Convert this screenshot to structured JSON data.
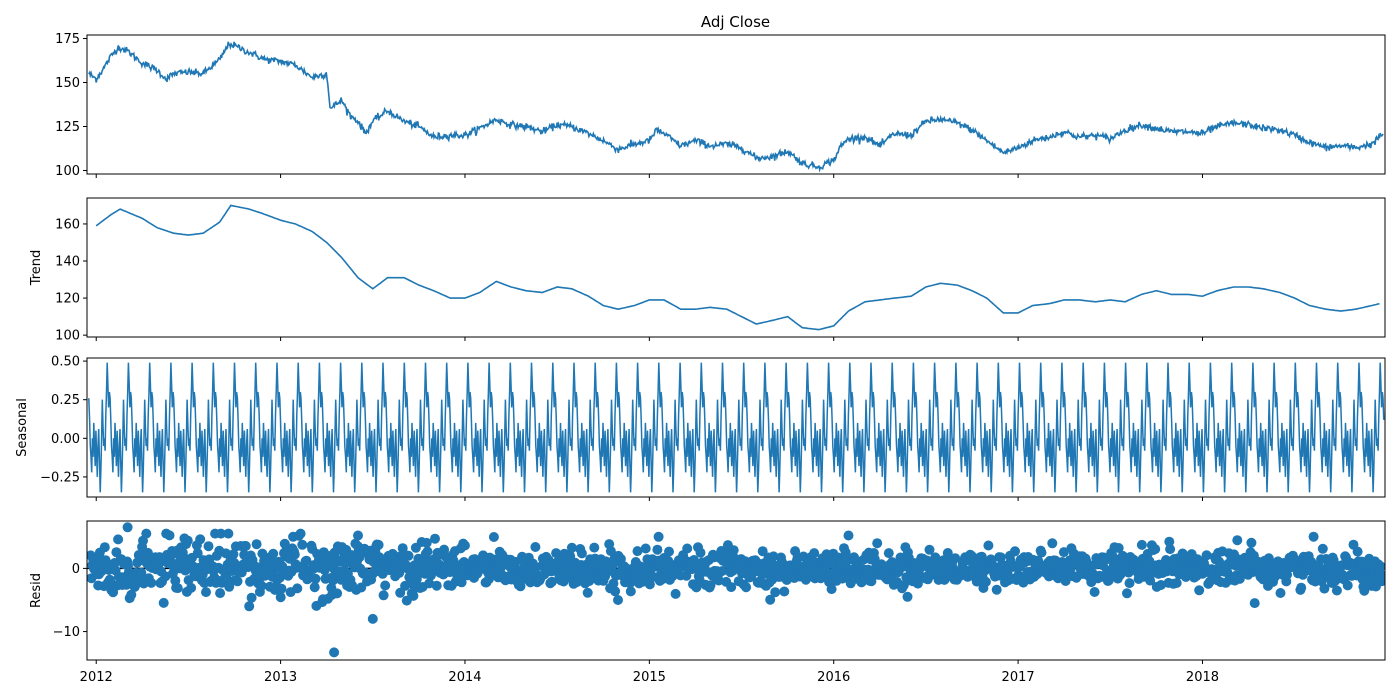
{
  "figure": {
    "title": "Adj Close",
    "line_color": "#1f77b4"
  },
  "chart_data": [
    {
      "type": "line",
      "title": "Adj Close",
      "ylabel": "",
      "xlim": [
        2011.95,
        2018.99
      ],
      "ylim": [
        98,
        177
      ],
      "yticks": [
        100,
        125,
        150,
        175
      ],
      "xticks": [
        2012,
        2013,
        2014,
        2015,
        2016,
        2017,
        2018
      ],
      "x_tick_labels": [
        "2012",
        "2013",
        "2014",
        "2015",
        "2016",
        "2017",
        "2018"
      ],
      "series": [
        {
          "x": [
            2011.96,
            2012.0,
            2012.04,
            2012.08,
            2012.12,
            2012.17,
            2012.25,
            2012.33,
            2012.38,
            2012.42,
            2012.5,
            2012.58,
            2012.67,
            2012.72,
            2012.75,
            2012.83,
            2012.92,
            2013.0,
            2013.08,
            2013.17,
            2013.25,
            2013.27,
            2013.33,
            2013.38,
            2013.42,
            2013.46,
            2013.5,
            2013.58,
            2013.67,
            2013.75,
            2013.83,
            2013.92,
            2014.0,
            2014.08,
            2014.17,
            2014.25,
            2014.33,
            2014.42,
            2014.5,
            2014.58,
            2014.67,
            2014.75,
            2014.83,
            2014.92,
            2015.0,
            2015.04,
            2015.08,
            2015.17,
            2015.25,
            2015.33,
            2015.42,
            2015.5,
            2015.58,
            2015.67,
            2015.75,
            2015.83,
            2015.92,
            2016.0,
            2016.04,
            2016.08,
            2016.17,
            2016.25,
            2016.33,
            2016.42,
            2016.5,
            2016.58,
            2016.67,
            2016.75,
            2016.83,
            2016.92,
            2017.0,
            2017.08,
            2017.17,
            2017.25,
            2017.33,
            2017.42,
            2017.5,
            2017.58,
            2017.67,
            2017.75,
            2017.83,
            2017.92,
            2018.0,
            2018.08,
            2018.17,
            2018.25,
            2018.33,
            2018.42,
            2018.5,
            2018.58,
            2018.67,
            2018.75,
            2018.83,
            2018.92,
            2018.98
          ],
          "y": [
            155,
            152,
            158,
            165,
            170,
            168,
            161,
            157,
            152,
            155,
            156,
            155,
            163,
            172,
            171,
            167,
            163,
            162,
            160,
            153,
            155,
            135,
            140,
            131,
            128,
            121,
            128,
            134,
            128,
            125,
            119,
            120,
            120,
            124,
            129,
            126,
            125,
            122,
            126,
            125,
            121,
            117,
            112,
            115,
            117,
            123,
            121,
            114,
            117,
            114,
            115,
            113,
            107,
            108,
            111,
            104,
            102,
            106,
            114,
            118,
            119,
            114,
            121,
            120,
            128,
            129,
            127,
            123,
            117,
            110,
            113,
            117,
            119,
            122,
            119,
            120,
            118,
            123,
            126,
            124,
            122,
            122,
            121,
            125,
            127,
            126,
            124,
            123,
            120,
            116,
            113,
            114,
            113,
            115,
            121
          ]
        }
      ]
    },
    {
      "type": "line",
      "title": "",
      "ylabel": "Trend",
      "xlim": [
        2011.95,
        2018.99
      ],
      "ylim": [
        99,
        174
      ],
      "yticks": [
        100,
        120,
        140,
        160
      ],
      "xticks": [
        2012,
        2013,
        2014,
        2015,
        2016,
        2017,
        2018
      ],
      "series": [
        {
          "x": [
            2012.0,
            2012.08,
            2012.13,
            2012.25,
            2012.33,
            2012.42,
            2012.5,
            2012.58,
            2012.67,
            2012.73,
            2012.83,
            2012.92,
            2013.0,
            2013.08,
            2013.17,
            2013.25,
            2013.33,
            2013.42,
            2013.5,
            2013.58,
            2013.67,
            2013.75,
            2013.83,
            2013.92,
            2014.0,
            2014.08,
            2014.17,
            2014.25,
            2014.33,
            2014.42,
            2014.5,
            2014.58,
            2014.67,
            2014.75,
            2014.83,
            2014.92,
            2015.0,
            2015.08,
            2015.17,
            2015.25,
            2015.33,
            2015.42,
            2015.5,
            2015.58,
            2015.67,
            2015.75,
            2015.83,
            2015.92,
            2016.0,
            2016.08,
            2016.17,
            2016.25,
            2016.33,
            2016.42,
            2016.5,
            2016.58,
            2016.67,
            2016.75,
            2016.83,
            2016.92,
            2017.0,
            2017.08,
            2017.17,
            2017.25,
            2017.33,
            2017.42,
            2017.5,
            2017.58,
            2017.67,
            2017.75,
            2017.83,
            2017.92,
            2018.0,
            2018.08,
            2018.17,
            2018.25,
            2018.33,
            2018.42,
            2018.5,
            2018.58,
            2018.67,
            2018.75,
            2018.83,
            2018.92,
            2018.96
          ],
          "y": [
            159,
            165,
            168,
            163,
            158,
            155,
            154,
            155,
            161,
            170,
            168,
            165,
            162,
            160,
            156,
            150,
            142,
            131,
            125,
            131,
            131,
            127,
            124,
            120,
            120,
            123,
            129,
            126,
            124,
            123,
            126,
            125,
            121,
            116,
            114,
            116,
            119,
            119,
            114,
            114,
            115,
            114,
            110,
            106,
            108,
            110,
            104,
            103,
            105,
            113,
            118,
            119,
            120,
            121,
            126,
            128,
            127,
            124,
            120,
            112,
            112,
            116,
            117,
            119,
            119,
            118,
            119,
            118,
            122,
            124,
            122,
            122,
            121,
            124,
            126,
            126,
            125,
            123,
            120,
            116,
            114,
            113,
            114,
            116,
            117
          ]
        }
      ]
    },
    {
      "type": "line",
      "title": "",
      "ylabel": "Seasonal",
      "xlim": [
        2011.95,
        2018.99
      ],
      "ylim": [
        -0.38,
        0.52
      ],
      "yticks": [
        -0.25,
        0.0,
        0.25,
        0.5
      ],
      "y_tick_labels": [
        "−0.25",
        "0.00",
        "0.25",
        "0.50"
      ],
      "xticks": [
        2012,
        2013,
        2014,
        2015,
        2016,
        2017,
        2018
      ],
      "period_days": 30,
      "pattern": [
        0.26,
        0.12,
        -0.05,
        -0.12,
        -0.22,
        0.0,
        -0.12,
        0.1,
        -0.05,
        -0.18,
        0.05,
        -0.1,
        -0.25,
        -0.05,
        0.06,
        -0.15,
        -0.35,
        -0.2,
        0.0,
        0.25,
        0.08,
        -0.05,
        0.0,
        -0.08,
        0.15,
        0.3,
        0.49,
        0.35,
        0.2,
        0.3
      ],
      "gaps": [
        [
          2013.25,
          2013.29
        ],
        [
          2013.95,
          2014.05
        ]
      ]
    },
    {
      "type": "scatter",
      "title": "",
      "ylabel": "Resid",
      "xlim": [
        2011.95,
        2018.99
      ],
      "ylim": [
        -14.5,
        7.5
      ],
      "yticks": [
        -10,
        0
      ],
      "y_tick_labels": [
        "−10",
        "0"
      ],
      "xticks": [
        2012,
        2013,
        2014,
        2015,
        2016,
        2017,
        2018
      ],
      "x_tick_labels": [
        "2012",
        "2013",
        "2014",
        "2015",
        "2016",
        "2017",
        "2018"
      ],
      "zero_line": 0,
      "notable_points": [
        {
          "x": 2012.17,
          "y": 6.5
        },
        {
          "x": 2013.29,
          "y": -13.3
        },
        {
          "x": 2013.5,
          "y": -8.0
        },
        {
          "x": 2013.42,
          "y": 5.2
        },
        {
          "x": 2015.05,
          "y": 5.0
        },
        {
          "x": 2016.08,
          "y": 5.2
        },
        {
          "x": 2016.4,
          "y": -4.5
        },
        {
          "x": 2014.83,
          "y": -5.0
        }
      ]
    }
  ]
}
